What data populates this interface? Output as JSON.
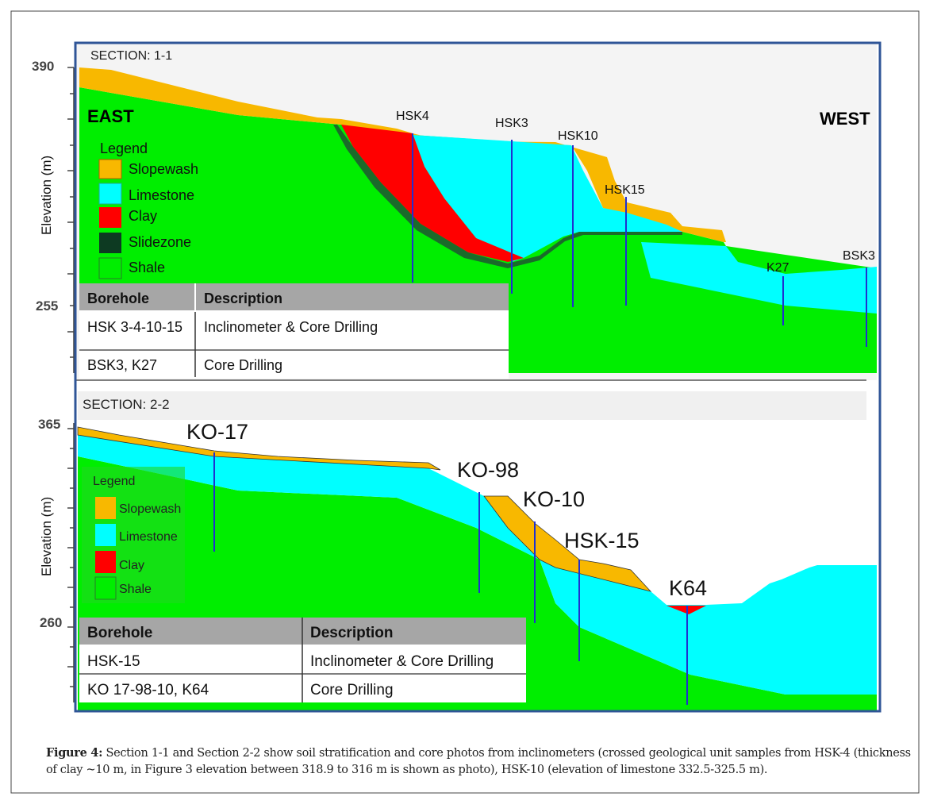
{
  "section1": {
    "title": "SECTION: 1-1",
    "east": "EAST",
    "west": "WEST",
    "axis": {
      "label": "Elevation (m)",
      "ticks": [
        "390",
        "255"
      ]
    },
    "boreholes": [
      "HSK4",
      "HSK3",
      "HSK10",
      "HSK15",
      "K27",
      "BSK3"
    ],
    "legend": {
      "title": "Legend",
      "items": [
        "Slopewash",
        "Limestone",
        "Clay",
        "Slidezone",
        "Shale"
      ]
    },
    "table": {
      "headers": [
        "Borehole",
        "Description"
      ],
      "rows": [
        [
          "HSK 3-4-10-15",
          "Inclinometer & Core Drilling"
        ],
        [
          "BSK3, K27",
          "Core Drilling"
        ]
      ]
    }
  },
  "section2": {
    "title": "SECTION: 2-2",
    "axis": {
      "label": "Elevation (m)",
      "ticks": [
        "365",
        "260"
      ]
    },
    "boreholes": [
      "KO-17",
      "KO-98",
      "KO-10",
      "HSK-15",
      "K64"
    ],
    "legend": {
      "title": "Legend",
      "items": [
        "Slopewash",
        "Limestone",
        "Clay",
        "Shale"
      ]
    },
    "table": {
      "headers": [
        "Borehole",
        "Description"
      ],
      "rows": [
        [
          "HSK-15",
          "Inclinometer & Core Drilling"
        ],
        [
          "KO 17-98-10, K64",
          "Core Drilling"
        ]
      ]
    }
  },
  "colors": {
    "slopewash": "#f8b800",
    "limestone": "#00ffff",
    "clay": "#ff0000",
    "slidezone": "#1a6b2a",
    "shale": "#00ee00",
    "borehole": "#2030d0",
    "frame": "#2f5597"
  },
  "caption": {
    "label": "Figure 4:",
    "text": " Section 1-1 and Section 2-2 show soil stratification and core photos from inclinometers (crossed geological unit samples from HSK-4 (thickness of clay ~10 m, in Figure 3 elevation between 318.9 to 316 m is shown as photo), HSK-10 (elevation of limestone 332.5-325.5 m)."
  }
}
